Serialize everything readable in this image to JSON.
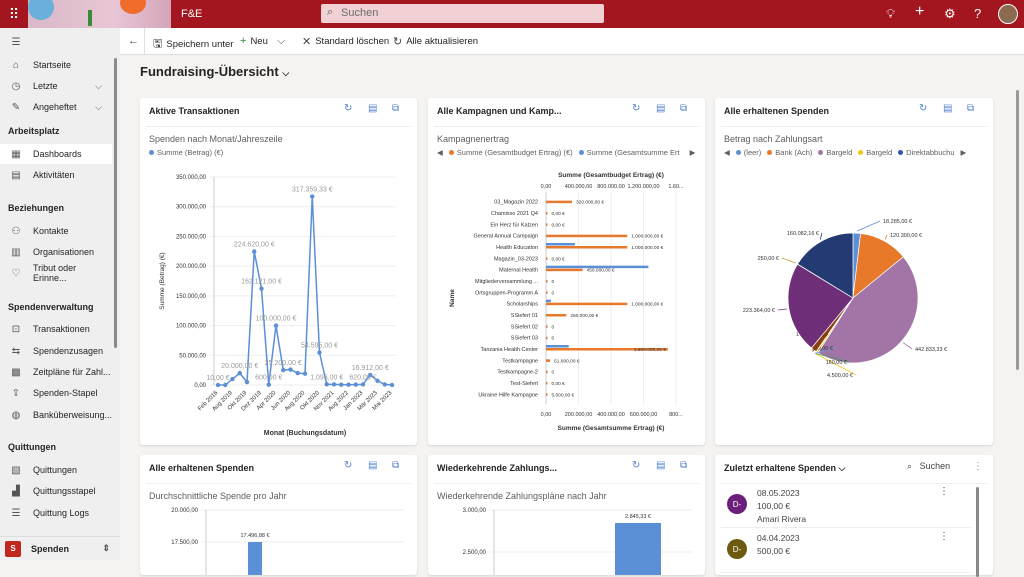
{
  "header": {
    "app_name": "F&E",
    "search_placeholder": "Suchen",
    "icons": [
      "waffle-icon",
      "lightbulb-icon",
      "plus-icon",
      "gear-icon",
      "help-icon",
      "user-avatar"
    ]
  },
  "sidebar": {
    "items_top": [
      {
        "label": "Startseite",
        "icon": "home-icon"
      },
      {
        "label": "Letzte",
        "icon": "clock-icon"
      },
      {
        "label": "Angeheftet",
        "icon": "pin-icon"
      }
    ],
    "sections": [
      {
        "title": "Arbeitsplatz",
        "items": [
          {
            "label": "Dashboards",
            "active": true
          },
          {
            "label": "Aktivitäten"
          }
        ]
      },
      {
        "title": "Beziehungen",
        "items": [
          {
            "label": "Kontakte"
          },
          {
            "label": "Organisationen"
          },
          {
            "label": "Tribut oder Erinne..."
          }
        ]
      },
      {
        "title": "Spendenverwaltung",
        "items": [
          {
            "label": "Transaktionen"
          },
          {
            "label": "Spendenzusagen"
          },
          {
            "label": "Zeitpläne für Zahl..."
          },
          {
            "label": "Spenden-Stapel"
          },
          {
            "label": "Banküberweisung..."
          }
        ]
      },
      {
        "title": "Quittungen",
        "items": [
          {
            "label": "Quittungen"
          },
          {
            "label": "Quittungsstapel"
          },
          {
            "label": "Quittung Logs"
          }
        ]
      }
    ],
    "area": {
      "badge": "S",
      "label": "Spenden"
    }
  },
  "commandbar": {
    "save_as": "Speichern unter",
    "new": "Neu",
    "clear_default": "Standard löschen",
    "refresh_all": "Alle aktualisieren"
  },
  "page": {
    "title": "Fundraising-Übersicht"
  },
  "colors": {
    "header": "#a4161f",
    "line": "#5b8fd6",
    "orange": "#e8782a",
    "blue": "#5b8fd6"
  },
  "cards": {
    "c1": {
      "title": "Aktive Transaktionen",
      "subtitle": "Spenden nach Monat/Jahreszeile",
      "legend": "Summe (Betrag) (€)"
    },
    "c2": {
      "title": "Alle Kampagnen und Kamp...",
      "subtitle": "Kampagnenertrag",
      "legend": [
        "Summe (Gesamtbudget Ertrag) (€)",
        "Summe (Gesamtsumme Ert"
      ]
    },
    "c3": {
      "title": "Alle erhaltenen Spenden",
      "subtitle": "Betrag nach Zahlungsart",
      "legend": [
        "(leer)",
        "Bank (Ach)",
        "Bargeld",
        "Bargeld",
        "Direktabbuchu"
      ]
    },
    "c4": {
      "title": "Alle erhaltenen Spenden",
      "subtitle": "Durchschnittliche Spende pro Jahr"
    },
    "c5": {
      "title": "Wiederkehrende Zahlungs...",
      "subtitle": "Wiederkehrende Zahlungspläne nach Jahr"
    },
    "c6": {
      "title": "Zuletzt erhaltene Spenden",
      "search": "Suchen",
      "items": [
        {
          "initials": "D-",
          "date": "08.05.2023",
          "amount": "100,00 €",
          "name": "Amari Rivera",
          "color": "#6b1f7a"
        },
        {
          "initials": "D-",
          "date": "04.04.2023",
          "amount": "500,00 €",
          "name": "",
          "color": "#6b5a10"
        }
      ]
    }
  },
  "chart_data": [
    {
      "type": "line",
      "title": "Spenden nach Monat/Jahreszeile",
      "xlabel": "Monat (Buchungsdatum)",
      "ylabel": "Summe (Betrag) (€)",
      "ylim": [
        0,
        350000
      ],
      "yticks": [
        "0,00",
        "50.000,00",
        "100.000,00",
        "150.000,00",
        "200.000,00",
        "250.000,00",
        "300.000,00",
        "350.000,00"
      ],
      "xticks": [
        "Feb 2016",
        "Aug 2019",
        "Okt 2019",
        "Dez 2019",
        "Apr 2020",
        "Jun 2020",
        "Aug 2020",
        "Okt 2020",
        "Nov 2021",
        "Aug 2022",
        "Jan 2023",
        "Mär 2023",
        "Mai 2023"
      ],
      "values": [
        10,
        10,
        10000,
        20000,
        5000,
        224620,
        162121,
        600,
        100000,
        25200,
        26000,
        20000,
        19000,
        317359.33,
        54595,
        1096,
        1000,
        600,
        500,
        620,
        1000,
        16912,
        7000,
        1000,
        0
      ],
      "labels": {
        "0": "10,00 €",
        "3": "20.000,00 €",
        "5": "224.620,00 €",
        "6": "162.121,00 €",
        "7": "600,00 €",
        "8": "100.000,00 €",
        "9": "25.200,00 €",
        "13": "317.359,33 €",
        "14": "54.595,00 €",
        "15": "1.096,00 €",
        "20": "620,00 €",
        "21": "16.912,00 €"
      }
    },
    {
      "type": "bar",
      "orientation": "horizontal",
      "title": "Kampagnenertrag",
      "ylabel": "Name",
      "xlabel_top": "Summe (Gesamtbudget Ertrag) (€)",
      "xlabel_bottom": "Summe (Gesamtsumme Ertrag) (€)",
      "xlim_top": [
        0,
        1600000
      ],
      "xticks_top": [
        "0,00",
        "400.000,00",
        "800.000,00",
        "1.200.000,00",
        "1.60..."
      ],
      "xlim_bottom": [
        0,
        800000
      ],
      "xticks_bottom": [
        "0,00",
        "200.000,00",
        "400.000,00",
        "600.000,00",
        "800..."
      ],
      "categories": [
        "03_Magazin 2022",
        "Chamisso 2021 Q4",
        "Ein Herz für Katzen",
        "General Annual Campaign",
        "Health Education",
        "Magazin_03-2023",
        "Maternal Health",
        "Mitgliederversammlung ...",
        "Ortsgruppen-Programm A",
        "Scholarships",
        "SSiefert 01",
        "SSiefert 02",
        "SSiefert 03",
        "Tanzania Health Center",
        "Testkampagne",
        "Testkampagne-2",
        "Test-Siefert",
        "Ukraine Hilfe Kampagne"
      ],
      "series": [
        {
          "name": "Summe (Gesamtbudget Ertrag) (€)",
          "values": [
            320000,
            0,
            0,
            1000000,
            1000000,
            0,
            450000,
            0,
            0,
            1000000,
            250000,
            0,
            0,
            1500000,
            51000,
            0,
            0,
            5000
          ],
          "labels": [
            "320.000,00 €",
            "0,00 €",
            "0,00 €",
            "1.000.000,00 €",
            "1.000.000,00 €",
            "0,00 €",
            "450.000,00 €",
            "0",
            "0",
            "1.000.000,00 €",
            "250.000,00 €",
            "0",
            "0",
            "1.500.000,00 €",
            "51.000,00 €",
            "0",
            "0,00 €",
            "5.000,00 €"
          ]
        },
        {
          "name": "Summe (Gesamtsumme Ertrag) (€)",
          "values": [
            0,
            0,
            0,
            0,
            178000,
            0,
            630000,
            0,
            0,
            30000,
            0,
            0,
            0,
            140000,
            0,
            0,
            0,
            0
          ]
        }
      ]
    },
    {
      "type": "pie",
      "title": "Betrag nach Zahlungsart",
      "slices": [
        {
          "value": 18285,
          "label": "18.285,00 €",
          "color": "#5b8fd6"
        },
        {
          "value": 120300,
          "label": "120.300,00 €",
          "color": "#e8782a"
        },
        {
          "value": 442833.33,
          "label": "442.833,33 €",
          "color": "#a275a6"
        },
        {
          "value": 4500,
          "label": "4.500,00 €",
          "color": "#f5c518"
        },
        {
          "value": 180,
          "label": "180,00 €",
          "color": "#4a9a5a"
        },
        {
          "value": 500,
          "label": "500,00 €",
          "color": "#6a9ad6"
        },
        {
          "value": 14100,
          "label": "14.100,00 €",
          "color": "#8a3f10"
        },
        {
          "value": 223364,
          "label": "223.364,00 €",
          "color": "#6f2f78"
        },
        {
          "value": 250,
          "label": "250,00 €",
          "color": "#c8a030"
        },
        {
          "value": 160082.16,
          "label": "160.082,16 €",
          "color": "#243a73"
        }
      ]
    },
    {
      "type": "bar",
      "title": "Durchschnittliche Spende pro Jahr",
      "yticks": [
        "20.000,00",
        "17.500,00"
      ],
      "values": [
        17496.88
      ],
      "labels": [
        "17.496,88 €"
      ]
    },
    {
      "type": "bar",
      "title": "Wiederkehrende Zahlungspläne nach Jahr",
      "yticks": [
        "3.000,00",
        "2.500,00"
      ],
      "values": [
        2845.33
      ],
      "labels": [
        "2.845,33 €"
      ]
    }
  ]
}
